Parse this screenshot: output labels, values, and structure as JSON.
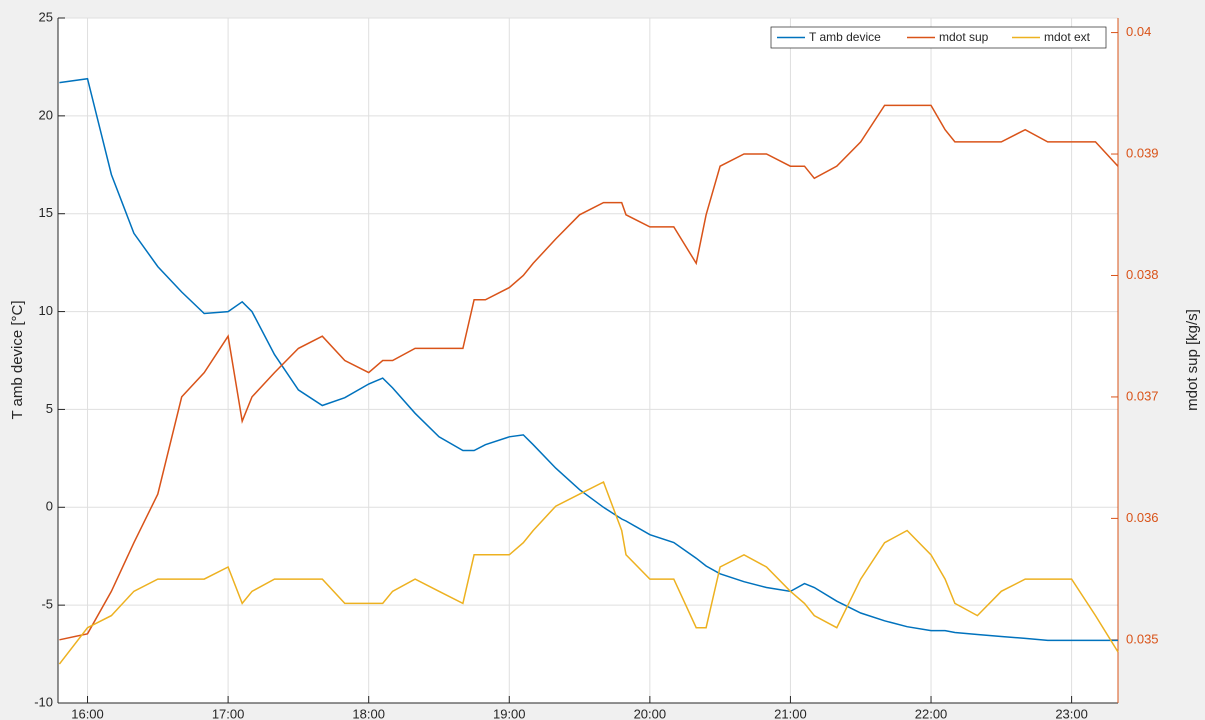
{
  "chart_data": {
    "type": "line",
    "ylabel": "T amb device [°C]",
    "y2label": "mdot sup [kg/s]",
    "x": [
      15.8,
      16.0,
      16.17,
      16.33,
      16.5,
      16.67,
      16.83,
      17.0,
      17.1,
      17.17,
      17.33,
      17.5,
      17.67,
      17.83,
      18.0,
      18.1,
      18.17,
      18.33,
      18.5,
      18.67,
      18.75,
      18.83,
      19.0,
      19.1,
      19.17,
      19.33,
      19.5,
      19.67,
      19.8,
      19.83,
      20.0,
      20.17,
      20.33,
      20.4,
      20.5,
      20.67,
      20.83,
      21.0,
      21.1,
      21.17,
      21.33,
      21.5,
      21.67,
      21.83,
      22.0,
      22.1,
      22.17,
      22.33,
      22.5,
      22.67,
      22.83,
      23.0,
      23.17,
      23.33
    ],
    "series": [
      {
        "name": "T amb device",
        "color": "#0072bd",
        "axis": "y",
        "values": [
          21.7,
          21.9,
          17,
          14,
          12.3,
          11,
          9.9,
          10,
          10.5,
          10,
          7.8,
          6,
          5.2,
          5.6,
          6.3,
          6.6,
          6.1,
          4.8,
          3.6,
          2.9,
          2.9,
          3.2,
          3.6,
          3.7,
          3.2,
          2.0,
          0.9,
          0.0,
          -0.6,
          -0.7,
          -1.4,
          -1.8,
          -2.6,
          -3.0,
          -3.4,
          -3.8,
          -4.1,
          -4.3,
          -3.9,
          -4.1,
          -4.8,
          -5.4,
          -5.8,
          -6.1,
          -6.3,
          -6.3,
          -6.4,
          -6.5,
          -6.6,
          -6.7,
          -6.8,
          -6.8,
          -6.8,
          -6.8
        ]
      },
      {
        "name": "mdot sup",
        "color": "#d95319",
        "axis": "y2",
        "values": [
          0.035,
          0.03505,
          0.0354,
          0.0358,
          0.0362,
          0.037,
          0.0372,
          0.0375,
          0.0368,
          0.037,
          0.0372,
          0.0374,
          0.0375,
          0.0373,
          0.0372,
          0.0373,
          0.0373,
          0.0374,
          0.0374,
          0.0374,
          0.0378,
          0.0378,
          0.0379,
          0.038,
          0.0381,
          0.0383,
          0.0385,
          0.0386,
          0.0386,
          0.0385,
          0.0384,
          0.0384,
          0.0381,
          0.0385,
          0.0389,
          0.039,
          0.039,
          0.0389,
          0.0389,
          0.0388,
          0.0389,
          0.0391,
          0.0394,
          0.0394,
          0.0394,
          0.0392,
          0.0391,
          0.0391,
          0.0391,
          0.0392,
          0.0391,
          0.0391,
          0.0391,
          0.0389
        ]
      },
      {
        "name": "mdot ext",
        "color": "#edb120",
        "axis": "y2",
        "values": [
          0.0348,
          0.0351,
          0.0352,
          0.0354,
          0.0355,
          0.0355,
          0.0355,
          0.0356,
          0.0353,
          0.0354,
          0.0355,
          0.0355,
          0.0355,
          0.0353,
          0.0353,
          0.0353,
          0.0354,
          0.0355,
          0.0354,
          0.0353,
          0.0357,
          0.0357,
          0.0357,
          0.0358,
          0.0359,
          0.0361,
          0.0362,
          0.0363,
          0.0359,
          0.0357,
          0.0355,
          0.0355,
          0.0351,
          0.0351,
          0.0356,
          0.0357,
          0.0356,
          0.0354,
          0.0353,
          0.0352,
          0.0351,
          0.0355,
          0.0358,
          0.0359,
          0.0357,
          0.0355,
          0.0353,
          0.0352,
          0.0354,
          0.0355,
          0.0355,
          0.0355,
          0.0352,
          0.0349
        ]
      }
    ],
    "xlim": [
      15.79,
      23.33
    ],
    "xticks": [
      {
        "value": 16,
        "label": "16:00"
      },
      {
        "value": 17,
        "label": "17:00"
      },
      {
        "value": 18,
        "label": "18:00"
      },
      {
        "value": 19,
        "label": "19:00"
      },
      {
        "value": 20,
        "label": "20:00"
      },
      {
        "value": 21,
        "label": "21:00"
      },
      {
        "value": 22,
        "label": "22:00"
      },
      {
        "value": 23,
        "label": "23:00"
      }
    ],
    "ylim": [
      -10,
      25
    ],
    "yticks": [
      -10,
      -5,
      0,
      5,
      10,
      15,
      20,
      25
    ],
    "y2lim": [
      0.03448,
      0.04012
    ],
    "y2ticks": [
      0.035,
      0.036,
      0.037,
      0.038,
      0.039,
      0.04
    ],
    "y2color": "#d95319",
    "grid": true,
    "legend": "northeast"
  }
}
